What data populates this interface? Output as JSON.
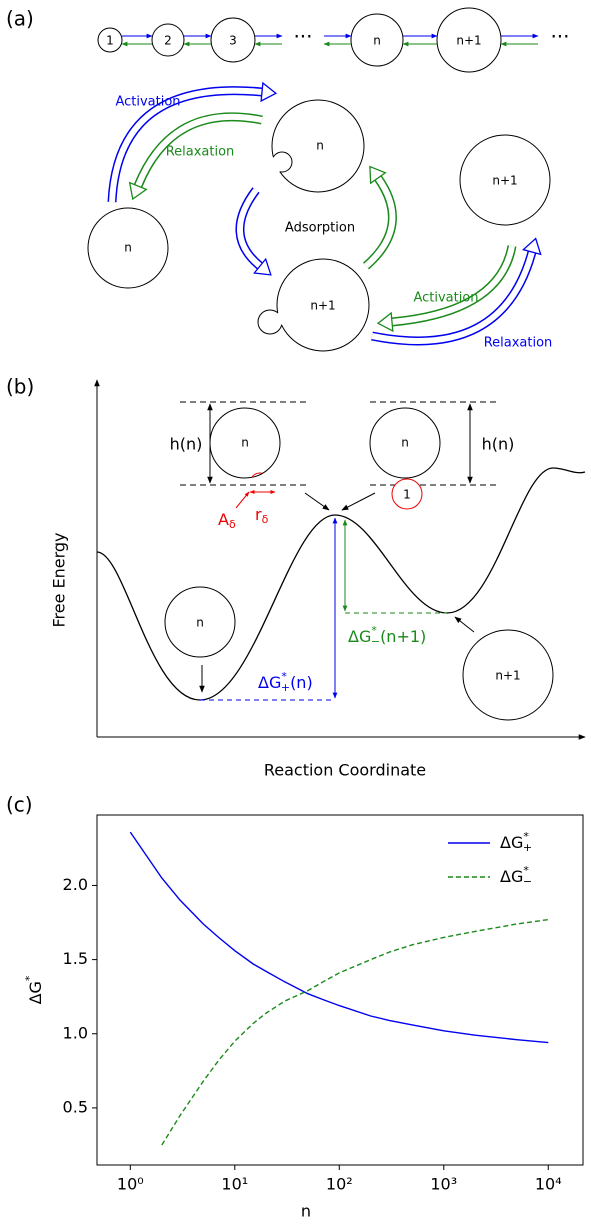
{
  "panel_a": {
    "label": "(a)",
    "chain": [
      "1",
      "2",
      "3",
      "n",
      "n+1"
    ],
    "ellipsis": "···",
    "top_cluster": "n",
    "left_cluster": "n",
    "bottom_cluster": "n+1",
    "right_cluster": "n+1",
    "activation_left": "Activation",
    "relaxation_left": "Relaxation",
    "adsorption": "Adsorption",
    "activation_right": "Activation",
    "relaxation_right": "Relaxation"
  },
  "panel_b": {
    "label": "(b)",
    "y_label": "Free Energy",
    "x_label": "Reaction Coordinate",
    "h_left": "h(n)",
    "h_right": "h(n)",
    "cluster_left_top": "n",
    "cluster_right_top": "n",
    "monomer": "1",
    "cluster_min": "n",
    "cluster_min2": "n+1",
    "area": {
      "main": "A",
      "sub": "δ"
    },
    "radius": {
      "main": "r",
      "sub": "δ"
    },
    "dg_plus": {
      "main": "ΔG",
      "sup": "*",
      "sub": "+",
      "tail": "(n)"
    },
    "dg_minus": {
      "main": "ΔG",
      "sup": "*",
      "sub": "−",
      "tail": "(n+1)"
    }
  },
  "chart_data": {
    "type": "line",
    "panel_label": "(c)",
    "xlabel": "n",
    "ylabel": "ΔG*",
    "xscale": "log",
    "x": [
      1,
      2,
      3,
      5,
      7,
      10,
      15,
      20,
      30,
      50,
      70,
      100,
      200,
      300,
      500,
      1000,
      2000,
      5000,
      10000
    ],
    "series": [
      {
        "name": "ΔG*+",
        "color": "#0000ee",
        "dash": false,
        "values": [
          2.36,
          2.05,
          1.9,
          1.74,
          1.65,
          1.56,
          1.47,
          1.42,
          1.35,
          1.27,
          1.23,
          1.19,
          1.12,
          1.09,
          1.06,
          1.02,
          0.99,
          0.96,
          0.94
        ]
      },
      {
        "name": "ΔG*−",
        "color": "#1a8a1a",
        "dash": true,
        "values": [
          null,
          0.25,
          0.45,
          0.68,
          0.82,
          0.95,
          1.07,
          1.14,
          1.22,
          1.29,
          1.35,
          1.41,
          1.5,
          1.55,
          1.6,
          1.65,
          1.69,
          1.74,
          1.77
        ]
      }
    ],
    "xlim": [
      0.48,
      21500
    ],
    "ylim": [
      0.115,
      2.475
    ],
    "xticks": [
      {
        "value": 1,
        "label": "10⁰"
      },
      {
        "value": 10,
        "label": "10¹"
      },
      {
        "value": 100,
        "label": "10²"
      },
      {
        "value": 1000,
        "label": "10³"
      },
      {
        "value": 10000,
        "label": "10⁴"
      }
    ],
    "yticks": [
      0.5,
      {
        "value": 1,
        "label": "1.0"
      },
      1.5,
      {
        "value": 2,
        "label": "2.0"
      }
    ],
    "legend": "upper right"
  }
}
